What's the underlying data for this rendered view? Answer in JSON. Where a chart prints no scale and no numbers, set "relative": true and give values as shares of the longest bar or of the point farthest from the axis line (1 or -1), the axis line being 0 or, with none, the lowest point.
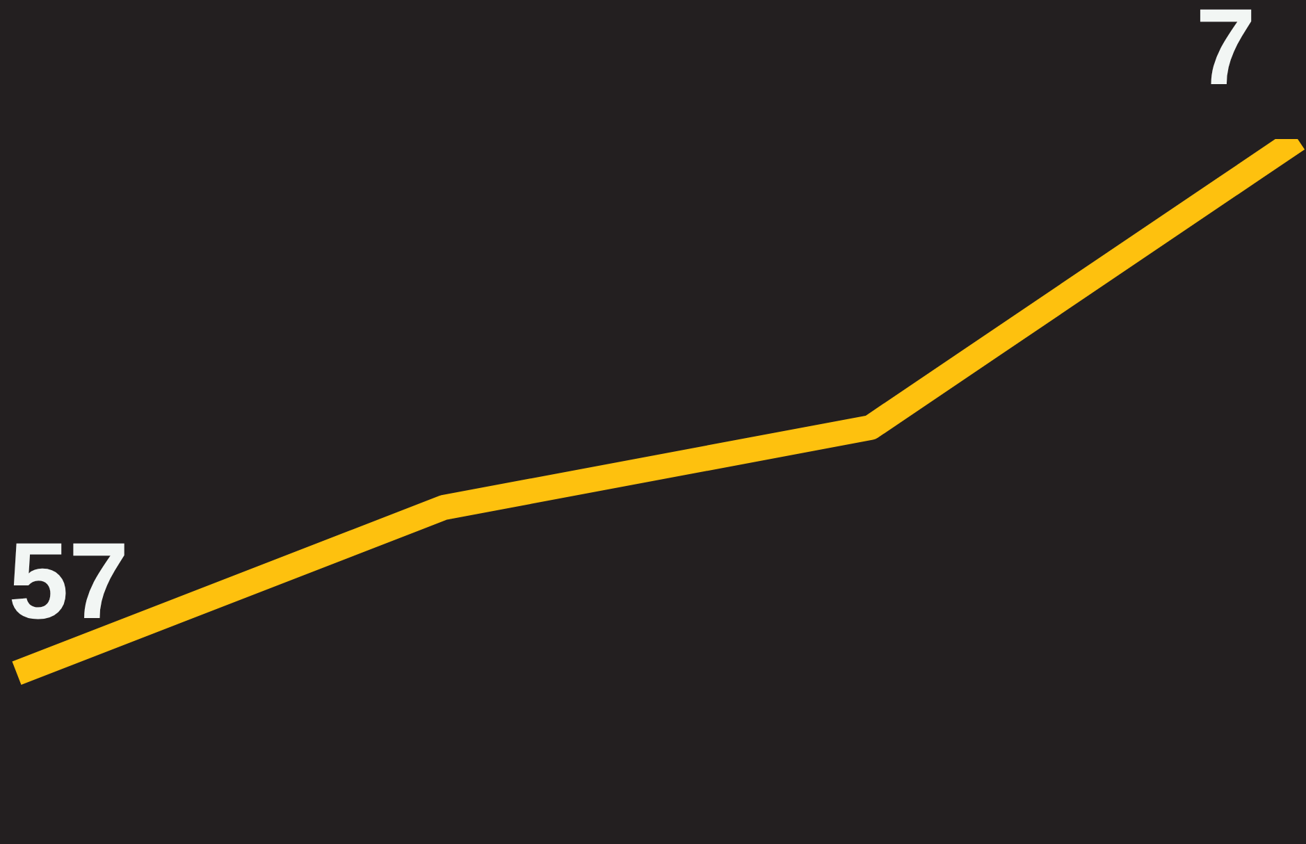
{
  "chart_data": {
    "type": "line",
    "relative": true,
    "categories": [
      null,
      null,
      null,
      null
    ],
    "series": [
      {
        "color": "#fec10e",
        "values": [
          0,
          0.31,
          0.46,
          1
        ]
      }
    ],
    "annotations": [
      "57",
      "7"
    ],
    "legend": false,
    "marker": "none",
    "line_style": "solid"
  }
}
